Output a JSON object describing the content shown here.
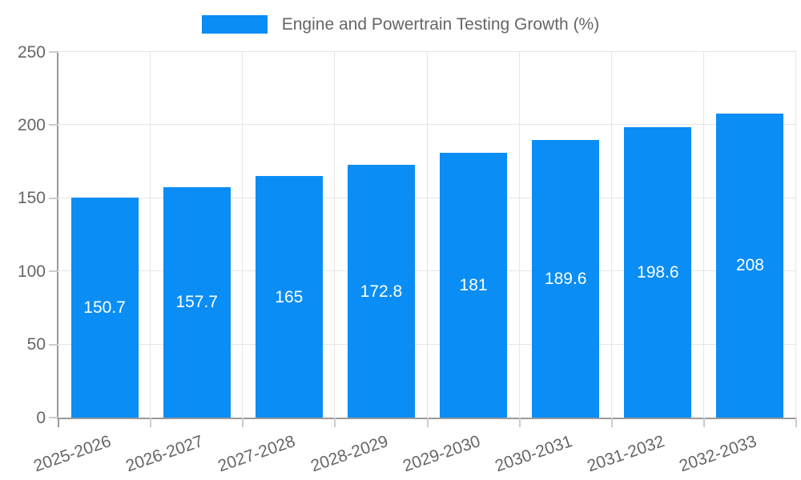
{
  "legend": {
    "label": "Engine and Powertrain Testing Growth (%)"
  },
  "chart_data": {
    "type": "bar",
    "title": "Engine and Powertrain Testing Growth (%)",
    "categories": [
      "2025-2026",
      "2026-2027",
      "2027-2028",
      "2028-2029",
      "2029-2030",
      "2030-2031",
      "2031-2032",
      "2032-2033"
    ],
    "values": [
      150.7,
      157.7,
      165,
      172.8,
      181,
      189.6,
      198.6,
      208
    ],
    "value_labels": [
      "150.7",
      "157.7",
      "165",
      "172.8",
      "181",
      "189.6",
      "198.6",
      "208"
    ],
    "xlabel": "",
    "ylabel": "",
    "ylim": [
      0,
      250
    ],
    "yticks": [
      0,
      50,
      100,
      150,
      200,
      250
    ],
    "grid": true,
    "legend_position": "top",
    "colors": {
      "bar": "#0a8df5",
      "text": "#666666",
      "grid": "#e6e6e6",
      "axis": "#9a9a9a",
      "tick": "#cccccc",
      "value_label": "#ffffff"
    }
  }
}
